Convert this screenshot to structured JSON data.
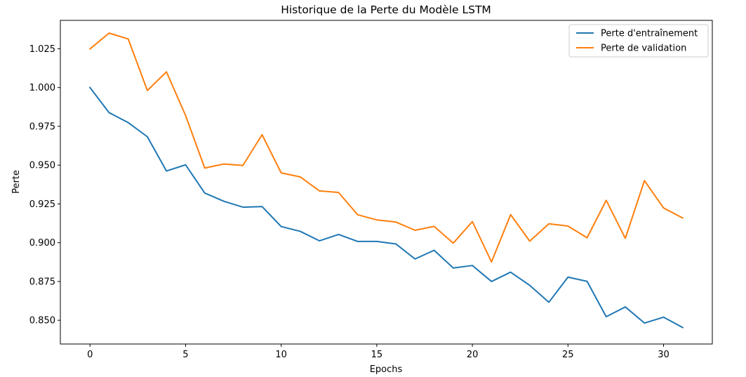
{
  "chart_data": {
    "type": "line",
    "title": "Historique de la Perte du Modèle LSTM",
    "xlabel": "Epochs",
    "ylabel": "Perte",
    "xlim": [
      -1.55,
      32.55
    ],
    "ylim": [
      0.8347,
      1.0433
    ],
    "x_ticks": [
      0,
      5,
      10,
      15,
      20,
      25,
      30
    ],
    "y_ticks": [
      0.85,
      0.875,
      0.9,
      0.925,
      0.95,
      0.975,
      1.0,
      1.025
    ],
    "x_tick_labels": [
      "0",
      "5",
      "10",
      "15",
      "20",
      "25",
      "30"
    ],
    "y_tick_labels": [
      "0.850",
      "0.875",
      "0.900",
      "0.925",
      "0.950",
      "0.975",
      "1.000",
      "1.025"
    ],
    "grid": false,
    "legend_position": "top-right",
    "x": [
      0,
      1,
      2,
      3,
      4,
      5,
      6,
      7,
      8,
      9,
      10,
      11,
      12,
      13,
      14,
      15,
      16,
      17,
      18,
      19,
      20,
      21,
      22,
      23,
      24,
      25,
      26,
      27,
      28,
      29,
      30,
      31
    ],
    "series": [
      {
        "name": "Perte d'entraînement",
        "color": "#1f77b4",
        "values": [
          1.0,
          0.9838,
          0.9774,
          0.9683,
          0.9462,
          0.9502,
          0.932,
          0.9267,
          0.9229,
          0.9233,
          0.9104,
          0.9073,
          0.9012,
          0.9053,
          0.9008,
          0.9008,
          0.8992,
          0.8895,
          0.8951,
          0.8837,
          0.8853,
          0.875,
          0.881,
          0.8725,
          0.8616,
          0.8778,
          0.8751,
          0.8523,
          0.8586,
          0.8482,
          0.852,
          0.8453
        ]
      },
      {
        "name": "Perte de validation",
        "color": "#ff7f0e",
        "values": [
          1.0249,
          1.0351,
          1.0313,
          0.9981,
          1.0101,
          0.982,
          0.9481,
          0.9507,
          0.9498,
          0.9696,
          0.945,
          0.9424,
          0.9334,
          0.9324,
          0.918,
          0.9147,
          0.9133,
          0.908,
          0.9105,
          0.8997,
          0.9136,
          0.8876,
          0.9181,
          0.901,
          0.9122,
          0.9107,
          0.9032,
          0.9273,
          0.9028,
          0.94,
          0.9224,
          0.9159
        ]
      }
    ]
  }
}
